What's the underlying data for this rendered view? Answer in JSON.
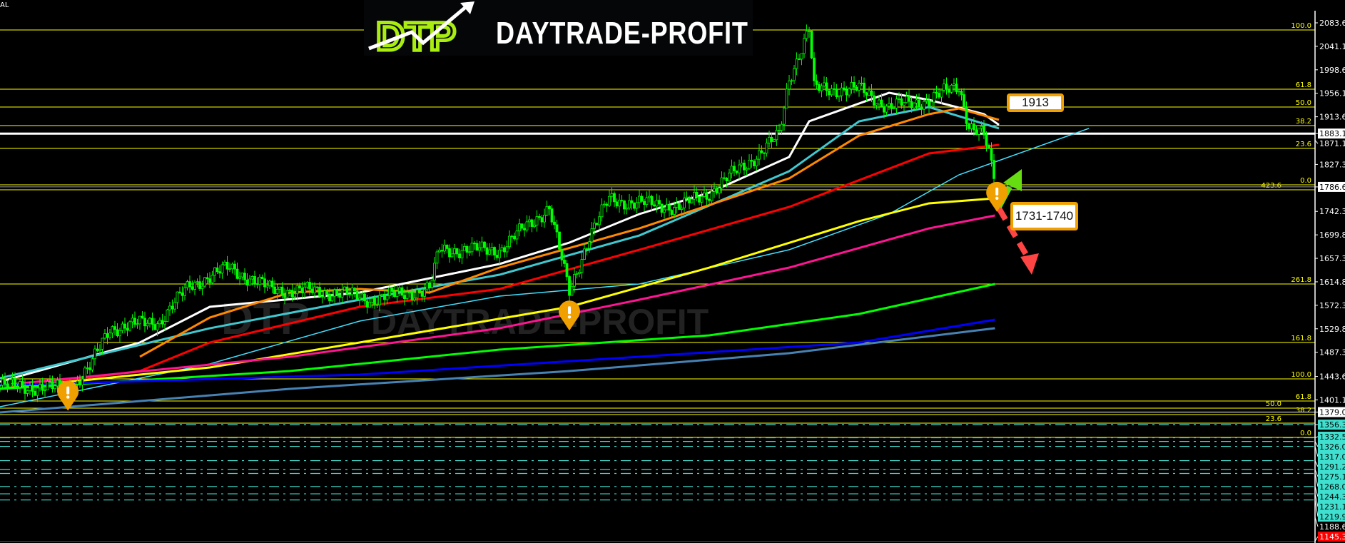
{
  "corner_label": "AL",
  "logo": {
    "text": "DAYTRADE-PROFIT",
    "mark": "DTP"
  },
  "annotations": {
    "resistance": "1913",
    "support": "1731-1740"
  },
  "colors": {
    "background": "#000000",
    "candle": "#00ff00",
    "fib": "#ffff00",
    "axis": "#ffffff",
    "box_border": "#f0a000",
    "marker": "#f0a000",
    "down_arrow": "#ff4444",
    "up_arrow": "#66dd11",
    "support_lines": "#40e0d0"
  },
  "chart_data": {
    "type": "candlestick",
    "title": "",
    "y_axis": {
      "position": "right",
      "ticks": [
        "2083.61",
        "2041.11",
        "1998.61",
        "1956.11",
        "1913.61",
        "1871.11",
        "1827.36",
        "1742.36",
        "1699.86",
        "1657.36",
        "1614.86",
        "1572.36",
        "1529.86",
        "1487.36",
        "1443.61",
        "1401.11",
        "1188.61"
      ],
      "highlight_labels": [
        {
          "text": "1883.18",
          "price": 1883.18,
          "style": "white-line"
        },
        {
          "text": "1786.66",
          "price": 1786.66,
          "style": "gray-line"
        },
        {
          "text": "1379.07",
          "price": 1379.07,
          "style": "white-line"
        },
        {
          "text": "1145.33",
          "price": 1145.33,
          "style": "red-line"
        }
      ],
      "ylim": [
        1145.33,
        2083.61
      ]
    },
    "price_path": [
      [
        0,
        1427.5
      ],
      [
        7,
        1421
      ],
      [
        9,
        1459.8
      ],
      [
        11,
        1530.9
      ],
      [
        16,
        1543.8
      ],
      [
        19,
        1608.4
      ],
      [
        23,
        1640.6
      ],
      [
        27,
        1601.9
      ],
      [
        34,
        1595
      ],
      [
        37,
        1582.5
      ],
      [
        43,
        1601.9
      ],
      [
        44,
        1672.9
      ],
      [
        50,
        1672.9
      ],
      [
        55,
        1750.4
      ],
      [
        57,
        1595.4
      ],
      [
        59,
        1698.7
      ],
      [
        61,
        1763.3
      ],
      [
        68,
        1750
      ],
      [
        71,
        1776.2
      ],
      [
        76,
        1847.3
      ],
      [
        78,
        1879.5
      ],
      [
        79,
        1982.9
      ],
      [
        81,
        2073.3
      ],
      [
        81.5,
        1963.5
      ],
      [
        86,
        1963.5
      ],
      [
        89,
        1931.2
      ],
      [
        93,
        1944.1
      ],
      [
        96,
        1969.9
      ],
      [
        97,
        1898.9
      ],
      [
        98.5,
        1879.5
      ],
      [
        99.6,
        1800
      ]
    ],
    "moving_averages": [
      {
        "color": "#ffffff",
        "points": [
          [
            0,
            1434
          ],
          [
            14,
            1505
          ],
          [
            21,
            1569.6
          ],
          [
            36,
            1595.4
          ],
          [
            50,
            1647.1
          ],
          [
            57,
            1685.8
          ],
          [
            64,
            1737.5
          ],
          [
            71,
            1776.2
          ],
          [
            79,
            1840.8
          ],
          [
            81,
            1905.4
          ],
          [
            89,
            1957
          ],
          [
            93,
            1944.1
          ],
          [
            98.5,
            1918.3
          ],
          [
            100,
            1898.9
          ]
        ]
      },
      {
        "color": "#40c8d0",
        "points": [
          [
            0,
            1440.4
          ],
          [
            21,
            1530.8
          ],
          [
            36,
            1582.5
          ],
          [
            50,
            1627.7
          ],
          [
            64,
            1698.7
          ],
          [
            79,
            1815
          ],
          [
            86,
            1905.4
          ],
          [
            93,
            1931.2
          ],
          [
            100,
            1892.5
          ]
        ]
      },
      {
        "color": "#ff8800",
        "points": [
          [
            14,
            1479.2
          ],
          [
            21,
            1550.2
          ],
          [
            29,
            1595.4
          ],
          [
            36,
            1601.9
          ],
          [
            43,
            1595.4
          ],
          [
            50,
            1640.6
          ],
          [
            64,
            1711.6
          ],
          [
            79,
            1802.1
          ],
          [
            86,
            1879.5
          ],
          [
            93,
            1918.3
          ],
          [
            96,
            1928.6
          ],
          [
            100,
            1908
          ]
        ]
      },
      {
        "color": "#ff0000",
        "points": [
          [
            0,
            1421.1
          ],
          [
            14,
            1453.3
          ],
          [
            21,
            1505
          ],
          [
            36,
            1569.6
          ],
          [
            50,
            1601.9
          ],
          [
            64,
            1672.9
          ],
          [
            79,
            1750.4
          ],
          [
            93,
            1847.3
          ],
          [
            100,
            1862.8
          ]
        ]
      },
      {
        "color": "#40e0ff",
        "points": [
          [
            0,
            1388.8
          ],
          [
            21,
            1466.3
          ],
          [
            36,
            1543.8
          ],
          [
            50,
            1589
          ],
          [
            64,
            1610.9
          ],
          [
            79,
            1672.9
          ],
          [
            89,
            1737.5
          ],
          [
            96,
            1808.5
          ],
          [
            109,
            1892.5
          ]
        ]
      },
      {
        "color": "#ffff00",
        "points": [
          [
            0,
            1421.1
          ],
          [
            21,
            1459.8
          ],
          [
            36,
            1505
          ],
          [
            57,
            1569.6
          ],
          [
            71,
            1640.6
          ],
          [
            86,
            1724.6
          ],
          [
            93,
            1756.9
          ],
          [
            99.6,
            1765.9
          ]
        ]
      },
      {
        "color": "#ff1493",
        "points": [
          [
            0,
            1427.5
          ],
          [
            29,
            1479.2
          ],
          [
            50,
            1530.8
          ],
          [
            64,
            1582.5
          ],
          [
            79,
            1640.6
          ],
          [
            93,
            1711.6
          ],
          [
            99.6,
            1734.9
          ]
        ]
      },
      {
        "color": "#00ff00",
        "points": [
          [
            0,
            1421.1
          ],
          [
            29,
            1453.3
          ],
          [
            50,
            1492.1
          ],
          [
            71,
            1517.9
          ],
          [
            86,
            1556.7
          ],
          [
            99.6,
            1610.9
          ]
        ]
      },
      {
        "color": "#0000ff",
        "points": [
          [
            0,
            1427.5
          ],
          [
            36,
            1446.9
          ],
          [
            64,
            1479.2
          ],
          [
            86,
            1505
          ],
          [
            99.6,
            1546.3
          ]
        ]
      },
      {
        "color": "#4682b4",
        "points": [
          [
            0,
            1378.4
          ],
          [
            29,
            1421.1
          ],
          [
            57,
            1453.3
          ],
          [
            79,
            1485.6
          ],
          [
            99.6,
            1530.8
          ]
        ]
      }
    ],
    "fib_levels": [
      {
        "label": "100.0",
        "price": 2070.7
      },
      {
        "label": "61.8",
        "price": 1963.5
      },
      {
        "label": "50.0",
        "price": 1931.2
      },
      {
        "label": "38.2",
        "price": 1897.6
      },
      {
        "label": "23.6",
        "price": 1856.3
      },
      {
        "label": "0.0",
        "price": 1790.4
      },
      {
        "label": "423.6",
        "price": 1781.4
      },
      {
        "label": "261.8",
        "price": 1610.9
      },
      {
        "label": "161.8",
        "price": 1505.0
      },
      {
        "label": "100.0",
        "price": 1439.1
      },
      {
        "label": "61.8",
        "price": 1399.1
      },
      {
        "label": "50.0",
        "price": 1386.2
      },
      {
        "label": "38.2",
        "price": 1374.6
      },
      {
        "label": "23.6",
        "price": 1359.1
      },
      {
        "label": "0.0",
        "price": 1333.2
      }
    ],
    "support_levels": [
      "1356.33",
      "1332.55",
      "1326.01",
      "1317.00",
      "1291.22",
      "1275.17",
      "1268.06",
      "1244.39",
      "1231.11",
      "1219.99"
    ],
    "alerts": [
      [
        6.8,
        1410
      ],
      [
        57,
        1555
      ],
      [
        99.8,
        1770
      ]
    ]
  }
}
